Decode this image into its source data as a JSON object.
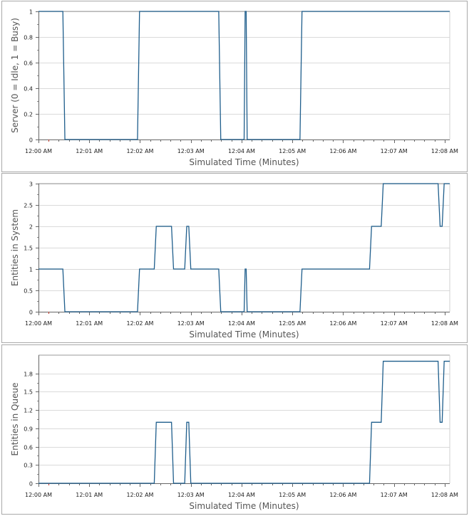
{
  "chart_data": [
    {
      "type": "line",
      "title": "",
      "xlabel": "Simulated Time (Minutes)",
      "ylabel": "Server (0 = Idle, 1 = Busy)",
      "ylim": [
        0,
        1
      ],
      "yticks": [
        0,
        0.2,
        0.4,
        0.6,
        0.8,
        1
      ],
      "ytick_labels": [
        "0",
        "0.2",
        "0.4",
        "0.6",
        "0.8",
        "1"
      ],
      "xlim": [
        0,
        8.1
      ],
      "xticks": [
        0,
        1,
        2,
        3,
        4,
        5,
        6,
        7,
        8
      ],
      "xtick_labels": [
        "12:00 AM",
        "12:01 AM",
        "12:02 AM",
        "12:03 AM",
        "12:04 AM",
        "12:05 AM",
        "12:06 AM",
        "12:07 AM",
        "12:08 AM"
      ],
      "grid": true,
      "color": "#1f5e8c",
      "series": [
        {
          "x": [
            0,
            0.48,
            0.52,
            1.95,
            1.99,
            3.55,
            3.59,
            4.05,
            4.07,
            4.09,
            4.11,
            5.15,
            5.19,
            8.1
          ],
          "y": [
            1,
            1,
            0,
            0,
            1,
            1,
            0,
            0,
            1,
            1,
            0,
            0,
            1,
            1
          ]
        }
      ]
    },
    {
      "type": "line",
      "title": "",
      "xlabel": "Simulated Time (Minutes)",
      "ylabel": "Entities in System",
      "ylim": [
        0,
        3
      ],
      "yticks": [
        0,
        0.5,
        1,
        1.5,
        2,
        2.5,
        3
      ],
      "ytick_labels": [
        "0",
        "0.5",
        "1",
        "1.5",
        "2",
        "2.5",
        "3"
      ],
      "xlim": [
        0,
        8.1
      ],
      "xticks": [
        0,
        1,
        2,
        3,
        4,
        5,
        6,
        7,
        8
      ],
      "xtick_labels": [
        "12:00 AM",
        "12:01 AM",
        "12:02 AM",
        "12:03 AM",
        "12:04 AM",
        "12:05 AM",
        "12:06 AM",
        "12:07 AM",
        "12:08 AM"
      ],
      "grid": true,
      "color": "#1f5e8c",
      "series": [
        {
          "x": [
            0,
            0.48,
            0.52,
            1.95,
            1.99,
            2.28,
            2.32,
            2.62,
            2.66,
            2.88,
            2.92,
            2.96,
            3.0,
            3.55,
            3.59,
            4.05,
            4.07,
            4.09,
            4.11,
            5.15,
            5.19,
            6.52,
            6.56,
            6.75,
            6.79,
            7.87,
            7.91,
            7.95,
            7.99,
            8.1
          ],
          "y": [
            1,
            1,
            0,
            0,
            1,
            1,
            2,
            2,
            1,
            1,
            2,
            2,
            1,
            1,
            0,
            0,
            1,
            1,
            0,
            0,
            1,
            1,
            2,
            2,
            3,
            3,
            2,
            2,
            3,
            3
          ]
        }
      ]
    },
    {
      "type": "line",
      "title": "",
      "xlabel": "Simulated Time (Minutes)",
      "ylabel": "Entities in Queue",
      "ylim": [
        0,
        2.1
      ],
      "yticks": [
        0,
        0.3,
        0.6,
        0.9,
        1.2,
        1.5,
        1.8
      ],
      "ytick_labels": [
        "0",
        "0.3",
        "0.6",
        "0.9",
        "1.2",
        "1.5",
        "1.8"
      ],
      "xlim": [
        0,
        8.1
      ],
      "xticks": [
        0,
        1,
        2,
        3,
        4,
        5,
        6,
        7,
        8
      ],
      "xtick_labels": [
        "12:00 AM",
        "12:01 AM",
        "12:02 AM",
        "12:03 AM",
        "12:04 AM",
        "12:05 AM",
        "12:06 AM",
        "12:07 AM",
        "12:08 AM"
      ],
      "grid": true,
      "color": "#1f5e8c",
      "series": [
        {
          "x": [
            0,
            2.28,
            2.32,
            2.62,
            2.66,
            2.88,
            2.92,
            2.96,
            3.0,
            6.52,
            6.56,
            6.75,
            6.79,
            7.87,
            7.91,
            7.95,
            7.99,
            8.1
          ],
          "y": [
            0,
            0,
            1,
            1,
            0,
            0,
            1,
            1,
            0,
            0,
            1,
            1,
            2,
            2,
            1,
            1,
            2,
            2
          ]
        }
      ]
    }
  ]
}
